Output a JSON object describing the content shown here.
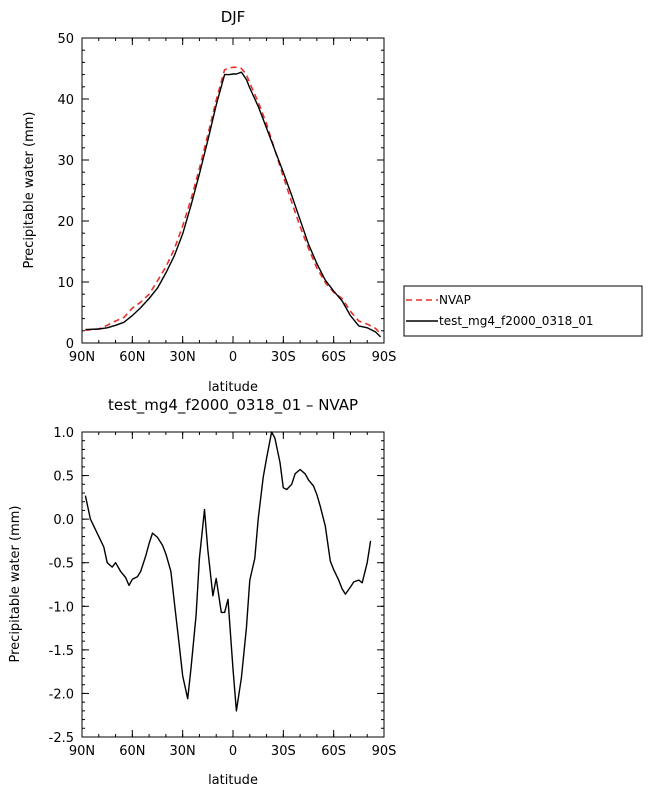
{
  "chart_data": [
    {
      "type": "line",
      "title": "DJF",
      "xlabel": "latitude",
      "ylabel": "Precipitable water (mm)",
      "xlim": [
        90,
        -90
      ],
      "ylim": [
        0,
        50
      ],
      "x_ticks": [
        90,
        60,
        30,
        0,
        -30,
        -60,
        -90
      ],
      "x_tick_labels": [
        "90N",
        "60N",
        "30N",
        "0",
        "30S",
        "60S",
        "90S"
      ],
      "y_ticks": [
        0,
        10,
        20,
        30,
        40,
        50
      ],
      "y_tick_labels": [
        "0",
        "10",
        "20",
        "30",
        "40",
        "50"
      ],
      "legend_position": "right",
      "series": [
        {
          "name": "NVAP",
          "color": "#e8302a",
          "dash": "dashed",
          "x": [
            88,
            80,
            75,
            70,
            65,
            60,
            55,
            50,
            45,
            40,
            35,
            30,
            25,
            20,
            15,
            10,
            5,
            2,
            0,
            -2,
            -5,
            -8,
            -10,
            -15,
            -20,
            -25,
            -30,
            -35,
            -40,
            -45,
            -50,
            -55,
            -60,
            -65,
            -70,
            -75,
            -80,
            -85,
            -88
          ],
          "y": [
            2.1,
            2.3,
            2.9,
            3.6,
            4.2,
            5.7,
            6.7,
            8.0,
            10.2,
            12.5,
            15.4,
            19.2,
            23.6,
            28.6,
            34.1,
            39.8,
            44.8,
            45.1,
            45.2,
            45.2,
            45.0,
            44.0,
            42.6,
            39.5,
            35.9,
            31.6,
            27.3,
            23.1,
            19.1,
            15.5,
            12.3,
            9.9,
            8.3,
            7.3,
            5.2,
            3.6,
            3.1,
            2.4,
            1.5
          ]
        },
        {
          "name": "test_mg4_f2000_0318_01",
          "color": "#000000",
          "dash": "solid",
          "x": [
            88,
            80,
            75,
            70,
            65,
            60,
            55,
            50,
            45,
            40,
            35,
            30,
            25,
            20,
            15,
            10,
            5,
            2,
            0,
            -2,
            -5,
            -8,
            -10,
            -15,
            -20,
            -25,
            -30,
            -35,
            -40,
            -45,
            -50,
            -55,
            -60,
            -65,
            -70,
            -75,
            -80,
            -85,
            -88
          ],
          "y": [
            2.2,
            2.3,
            2.5,
            2.9,
            3.4,
            4.5,
            5.8,
            7.3,
            9.0,
            11.5,
            14.3,
            17.9,
            22.6,
            27.7,
            33.2,
            39.0,
            44.0,
            44.0,
            44.1,
            44.1,
            44.4,
            43.2,
            41.8,
            38.8,
            35.2,
            31.6,
            28.0,
            24.2,
            20.2,
            16.2,
            13.0,
            10.3,
            8.5,
            6.9,
            4.5,
            2.8,
            2.5,
            1.8,
            1.0
          ]
        }
      ]
    },
    {
      "type": "line",
      "title": "test_mg4_f2000_0318_01 – NVAP",
      "xlabel": "latitude",
      "ylabel": "Precipitable water (mm)",
      "xlim": [
        90,
        -90
      ],
      "ylim": [
        -2.5,
        1.0
      ],
      "x_ticks": [
        90,
        60,
        30,
        0,
        -30,
        -60,
        -90
      ],
      "x_tick_labels": [
        "90N",
        "60N",
        "30N",
        "0",
        "30S",
        "60S",
        "90S"
      ],
      "y_ticks": [
        -2.5,
        -2.0,
        -1.5,
        -1.0,
        -0.5,
        0.0,
        0.5,
        1.0
      ],
      "y_tick_labels": [
        "-2.5",
        "-2.0",
        "-1.5",
        "-1.0",
        "-0.5",
        "0.0",
        "0.5",
        "1.0"
      ],
      "series": [
        {
          "name": "",
          "color": "#000000",
          "dash": "solid",
          "x": [
            88,
            85,
            80,
            77,
            75,
            72,
            70,
            67,
            64,
            62,
            60,
            57,
            55,
            52,
            50,
            48,
            45,
            42,
            40,
            37,
            35,
            32,
            30,
            27,
            25,
            22,
            20,
            17,
            15,
            12,
            10,
            7,
            5,
            3,
            0,
            -2,
            -5,
            -8,
            -10,
            -13,
            -15,
            -18,
            -20,
            -23,
            -25,
            -28,
            -30,
            -32,
            -35,
            -37,
            -40,
            -43,
            -45,
            -48,
            -50,
            -52,
            -55,
            -58,
            -60,
            -63,
            -65,
            -67,
            -70,
            -72,
            -75,
            -77,
            -80,
            -82,
            -85,
            -87,
            -88
          ],
          "y": [
            0.27,
            0.0,
            -0.2,
            -0.32,
            -0.5,
            -0.55,
            -0.5,
            -0.6,
            -0.67,
            -0.76,
            -0.69,
            -0.66,
            -0.6,
            -0.42,
            -0.28,
            -0.16,
            -0.21,
            -0.3,
            -0.4,
            -0.6,
            -0.95,
            -1.45,
            -1.8,
            -2.06,
            -1.7,
            -1.1,
            -0.45,
            0.11,
            -0.35,
            -0.88,
            -0.68,
            -1.07,
            -1.07,
            -0.92,
            -1.72,
            -2.2,
            -1.82,
            -1.25,
            -0.7,
            -0.45,
            0.0,
            0.48,
            0.7,
            1.0,
            0.93,
            0.65,
            0.36,
            0.34,
            0.4,
            0.52,
            0.57,
            0.52,
            0.45,
            0.38,
            0.28,
            0.15,
            -0.08,
            -0.48,
            -0.58,
            -0.7,
            -0.8,
            -0.86,
            -0.78,
            -0.72,
            -0.7,
            -0.73,
            -0.5,
            -0.25,
            null,
            null,
            null
          ]
        }
      ]
    }
  ],
  "legend": {
    "items": [
      {
        "label": "NVAP"
      },
      {
        "label": "test_mg4_f2000_0318_01"
      }
    ]
  }
}
